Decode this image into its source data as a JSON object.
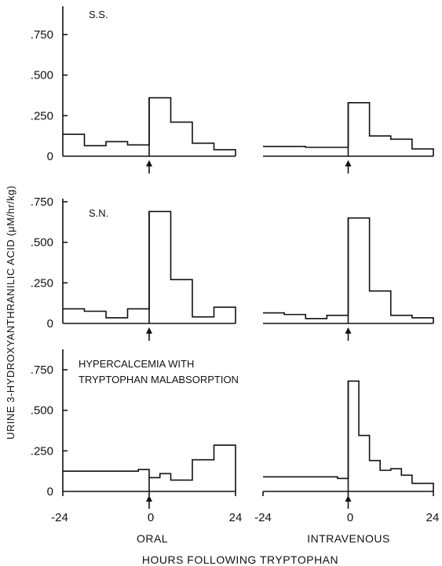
{
  "chart_data": {
    "type": "line",
    "ylabel": "URINE 3-HYDROXYANTHRANILIC ACID (μM/hr/kg)",
    "xlabel": "HOURS FOLLOWING TRYPTOPHAN",
    "xlim": [
      -24,
      24
    ],
    "ylim": [
      0,
      0.95
    ],
    "x_tick_labels": [
      "-24",
      "0",
      "24"
    ],
    "y_tick_labels": [
      "0",
      ".250",
      ".500",
      ".750"
    ],
    "column_labels": [
      "ORAL",
      "INTRAVENOUS"
    ],
    "marker": "dose at hour 0 (arrow)",
    "panels": [
      {
        "label": "S.S.",
        "oral": [
          {
            "x0": -24,
            "x1": -18,
            "y": 0.135
          },
          {
            "x0": -18,
            "x1": -12,
            "y": 0.065
          },
          {
            "x0": -12,
            "x1": -6,
            "y": 0.09
          },
          {
            "x0": -6,
            "x1": 0,
            "y": 0.07
          },
          {
            "x0": 0,
            "x1": 6,
            "y": 0.36
          },
          {
            "x0": 6,
            "x1": 12,
            "y": 0.21
          },
          {
            "x0": 12,
            "x1": 18,
            "y": 0.08
          },
          {
            "x0": 18,
            "x1": 24,
            "y": 0.04
          }
        ],
        "intravenous": [
          {
            "x0": -24,
            "x1": -12,
            "y": 0.06
          },
          {
            "x0": -12,
            "x1": 0,
            "y": 0.055
          },
          {
            "x0": 0,
            "x1": 6,
            "y": 0.33
          },
          {
            "x0": 6,
            "x1": 12,
            "y": 0.125
          },
          {
            "x0": 12,
            "x1": 18,
            "y": 0.105
          },
          {
            "x0": 18,
            "x1": 24,
            "y": 0.045
          }
        ]
      },
      {
        "label": "S.N.",
        "oral": [
          {
            "x0": -24,
            "x1": -18,
            "y": 0.09
          },
          {
            "x0": -18,
            "x1": -12,
            "y": 0.075
          },
          {
            "x0": -12,
            "x1": -6,
            "y": 0.035
          },
          {
            "x0": -6,
            "x1": 0,
            "y": 0.09
          },
          {
            "x0": 0,
            "x1": 6,
            "y": 0.69
          },
          {
            "x0": 6,
            "x1": 12,
            "y": 0.27
          },
          {
            "x0": 12,
            "x1": 18,
            "y": 0.04
          },
          {
            "x0": 18,
            "x1": 24,
            "y": 0.1
          }
        ],
        "intravenous": [
          {
            "x0": -24,
            "x1": -18,
            "y": 0.065
          },
          {
            "x0": -18,
            "x1": -12,
            "y": 0.055
          },
          {
            "x0": -12,
            "x1": -6,
            "y": 0.03
          },
          {
            "x0": -6,
            "x1": 0,
            "y": 0.05
          },
          {
            "x0": 0,
            "x1": 6,
            "y": 0.65
          },
          {
            "x0": 6,
            "x1": 12,
            "y": 0.2
          },
          {
            "x0": 12,
            "x1": 18,
            "y": 0.05
          },
          {
            "x0": 18,
            "x1": 24,
            "y": 0.035
          }
        ]
      },
      {
        "label": "HYPERCALCEMIA WITH\nTRYPTOPHAN MALABSORPTION",
        "oral": [
          {
            "x0": -24,
            "x1": -3,
            "y": 0.125
          },
          {
            "x0": -3,
            "x1": 0,
            "y": 0.135
          },
          {
            "x0": 0,
            "x1": 3,
            "y": 0.085
          },
          {
            "x0": 3,
            "x1": 6,
            "y": 0.11
          },
          {
            "x0": 6,
            "x1": 12,
            "y": 0.07
          },
          {
            "x0": 12,
            "x1": 18,
            "y": 0.195
          },
          {
            "x0": 18,
            "x1": 24,
            "y": 0.285
          }
        ],
        "intravenous": [
          {
            "x0": -24,
            "x1": -3,
            "y": 0.09
          },
          {
            "x0": -3,
            "x1": 0,
            "y": 0.08
          },
          {
            "x0": 0,
            "x1": 3,
            "y": 0.68
          },
          {
            "x0": 3,
            "x1": 6,
            "y": 0.345
          },
          {
            "x0": 6,
            "x1": 9,
            "y": 0.19
          },
          {
            "x0": 9,
            "x1": 12,
            "y": 0.13
          },
          {
            "x0": 12,
            "x1": 15,
            "y": 0.14
          },
          {
            "x0": 15,
            "x1": 18,
            "y": 0.1
          },
          {
            "x0": 18,
            "x1": 24,
            "y": 0.05
          }
        ]
      }
    ]
  }
}
